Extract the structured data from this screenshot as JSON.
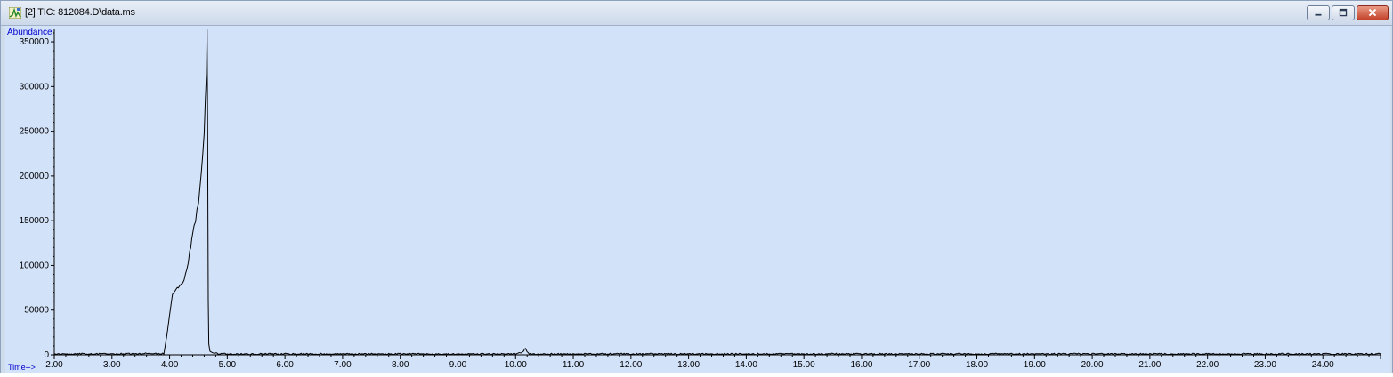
{
  "window": {
    "title": "[2] TIC: 812084.D\\data.ms",
    "icon": "chromatogram-app-icon",
    "controls": [
      "minimize-icon",
      "restore-icon",
      "close-icon"
    ]
  },
  "colors": {
    "plot_background": "#d2e2f9",
    "trace": "#000000",
    "axis_label": "#0000cc",
    "close_button": "#c4432a"
  },
  "chart_data": {
    "type": "line",
    "ylabel": "Abundance",
    "xlabel": "Time-->",
    "xlim": [
      2.0,
      25.0
    ],
    "ylim": [
      0,
      360000
    ],
    "grid": false,
    "x_ticks": [
      "2.00",
      "3.00",
      "4.00",
      "5.00",
      "6.00",
      "7.00",
      "8.00",
      "9.00",
      "10.00",
      "11.00",
      "12.00",
      "13.00",
      "14.00",
      "15.00",
      "16.00",
      "17.00",
      "18.00",
      "19.00",
      "20.00",
      "21.00",
      "22.00",
      "23.00",
      "24.00"
    ],
    "y_ticks": [
      "0",
      "50000",
      "100000",
      "150000",
      "200000",
      "250000",
      "300000",
      "350000"
    ],
    "series": [
      {
        "x": [
          2.0,
          3.0,
          3.9,
          3.95,
          4.0,
          4.05,
          4.1,
          4.15,
          4.2,
          4.25,
          4.3,
          4.35,
          4.4,
          4.45,
          4.5,
          4.55,
          4.6,
          4.62,
          4.64,
          4.65,
          4.66,
          4.67,
          4.68,
          4.7,
          4.75,
          4.8,
          5.0,
          8.0,
          10.0,
          10.12,
          10.17,
          10.2,
          10.25,
          10.3,
          12.0,
          16.0,
          20.0,
          24.0,
          25.0
        ],
        "y": [
          1000,
          1000,
          1500,
          20000,
          45000,
          68000,
          72000,
          75000,
          78000,
          85000,
          95000,
          115000,
          135000,
          150000,
          172000,
          205000,
          245000,
          280000,
          318000,
          368000,
          250000,
          60000,
          12000,
          4000,
          2000,
          1500,
          1000,
          1000,
          1000,
          3000,
          7000,
          3000,
          1000,
          1000,
          1000,
          1000,
          1000,
          1000,
          1000
        ]
      }
    ]
  }
}
